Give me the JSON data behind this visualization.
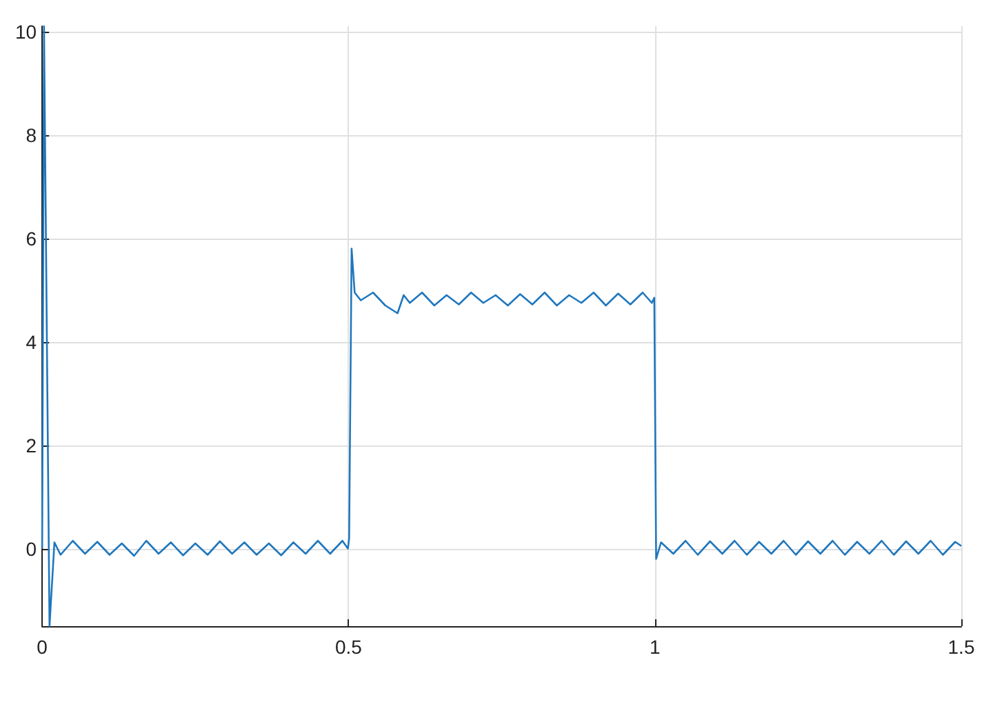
{
  "chart_data": {
    "type": "line",
    "x": [
      0,
      0.003,
      0.012,
      0.02,
      0.03,
      0.05,
      0.07,
      0.09,
      0.11,
      0.13,
      0.15,
      0.17,
      0.19,
      0.21,
      0.23,
      0.25,
      0.27,
      0.29,
      0.31,
      0.33,
      0.35,
      0.37,
      0.39,
      0.41,
      0.43,
      0.45,
      0.47,
      0.49,
      0.499,
      0.501,
      0.505,
      0.51,
      0.52,
      0.54,
      0.56,
      0.58,
      0.59,
      0.6,
      0.62,
      0.64,
      0.66,
      0.68,
      0.7,
      0.72,
      0.74,
      0.76,
      0.78,
      0.8,
      0.82,
      0.84,
      0.86,
      0.88,
      0.9,
      0.92,
      0.94,
      0.96,
      0.98,
      0.995,
      0.999,
      1.002,
      1.01,
      1.03,
      1.05,
      1.07,
      1.09,
      1.11,
      1.13,
      1.15,
      1.17,
      1.19,
      1.21,
      1.23,
      1.25,
      1.27,
      1.29,
      1.31,
      1.33,
      1.35,
      1.37,
      1.39,
      1.41,
      1.43,
      1.45,
      1.47,
      1.49,
      1.5
    ],
    "values": [
      0,
      10.1,
      -1.5,
      0.12,
      -0.12,
      0.15,
      -0.1,
      0.13,
      -0.12,
      0.1,
      -0.14,
      0.15,
      -0.1,
      0.12,
      -0.13,
      0.1,
      -0.12,
      0.14,
      -0.1,
      0.12,
      -0.12,
      0.1,
      -0.13,
      0.12,
      -0.1,
      0.15,
      -0.1,
      0.15,
      0,
      0.2,
      5.8,
      4.95,
      4.8,
      4.95,
      4.7,
      4.55,
      4.9,
      4.75,
      4.95,
      4.7,
      4.9,
      4.72,
      4.95,
      4.75,
      4.9,
      4.7,
      4.92,
      4.72,
      4.95,
      4.7,
      4.9,
      4.75,
      4.95,
      4.7,
      4.93,
      4.72,
      4.95,
      4.75,
      4.85,
      -0.2,
      0.12,
      -0.1,
      0.15,
      -0.12,
      0.14,
      -0.1,
      0.15,
      -0.12,
      0.13,
      -0.1,
      0.15,
      -0.12,
      0.14,
      -0.1,
      0.15,
      -0.12,
      0.13,
      -0.1,
      0.15,
      -0.12,
      0.14,
      -0.1,
      0.15,
      -0.12,
      0.13,
      0.05
    ],
    "color": "#1f77bd",
    "xlim": [
      0,
      1.5
    ],
    "xticks": [
      0,
      0.5,
      1,
      1.5
    ],
    "ylim": [
      -1.5,
      10.1
    ],
    "yticks": [
      0,
      2,
      4,
      6,
      8,
      10
    ],
    "grid": true
  }
}
